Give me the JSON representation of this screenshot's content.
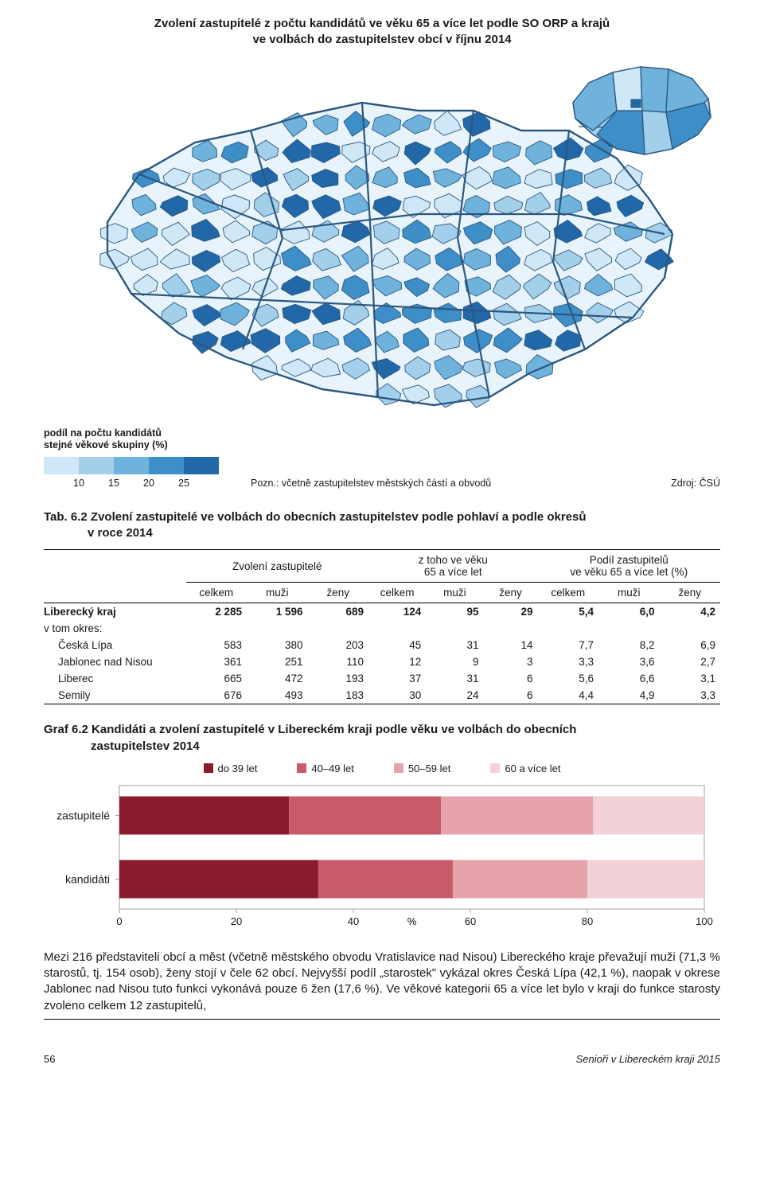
{
  "colors": {
    "map_palette": [
      "#cfe7f6",
      "#a3cfea",
      "#6fb3dd",
      "#3e8fc8",
      "#2267a7"
    ],
    "map_outline": "#2b577f",
    "map_light": "#e8f3fb",
    "chart_series": [
      "#8a1a2e",
      "#c85a6a",
      "#e6a3ac",
      "#f2d2d7"
    ],
    "chart_axis": "#9aa1a8",
    "text": "#1a1a1a"
  },
  "map": {
    "title_l1": "Zvolení zastupitelé z počtu kandidátů ve věku 65 a více let podle SO ORP a krajů",
    "title_l2": "ve volbách do zastupitelstev obcí v říjnu 2014",
    "legend_title_l1": "podíl na počtu kandidátů",
    "legend_title_l2": "stejné věkové skupiny (%)",
    "legend_labels": [
      "10",
      "15",
      "20",
      "25"
    ],
    "note": "Pozn.: včetně zastupitelstev městských částí a obvodů",
    "source": "Zdroj: ČSÚ"
  },
  "table": {
    "caption_prefix": "Tab. 6.2 ",
    "caption_l1": "Zvolení zastupitelé ve volbách do obecních zastupitelstev podle pohlaví a podle okresů",
    "caption_l2": "v roce 2014",
    "head_group_elected": "Zvolení zastupitelé",
    "head_group_age": "z toho ve věku\n65 a více let",
    "head_group_share": "Podíl zastupitelů\nve věku 65 a více let (%)",
    "sub_total": "celkem",
    "sub_men": "muži",
    "sub_women": "ženy",
    "total_row_label": "Liberecký kraj",
    "subhead": "v tom okres:",
    "rows": [
      {
        "label": "Česká Lípa",
        "v": [
          "583",
          "380",
          "203",
          "45",
          "31",
          "14",
          "7,7",
          "8,2",
          "6,9"
        ]
      },
      {
        "label": "Jablonec nad Nisou",
        "v": [
          "361",
          "251",
          "110",
          "12",
          "9",
          "3",
          "3,3",
          "3,6",
          "2,7"
        ]
      },
      {
        "label": "Liberec",
        "v": [
          "665",
          "472",
          "193",
          "37",
          "31",
          "6",
          "5,6",
          "6,6",
          "3,1"
        ]
      },
      {
        "label": "Semily",
        "v": [
          "676",
          "493",
          "183",
          "30",
          "24",
          "6",
          "4,4",
          "4,9",
          "3,3"
        ]
      }
    ],
    "total_values": [
      "2 285",
      "1 596",
      "689",
      "124",
      "95",
      "29",
      "5,4",
      "6,0",
      "4,2"
    ]
  },
  "chart": {
    "caption_prefix": "Graf 6.2 ",
    "caption_l1": "Kandidáti a zvolení zastupitelé v Libereckém kraji podle věku ve volbách do obecních",
    "caption_l2": "zastupitelstev 2014",
    "legend_labels": [
      "do 39 let",
      "40–49 let",
      "50–59 let",
      "60 a více let"
    ],
    "y_labels": [
      "zastupitelé",
      "kandidáti"
    ],
    "x_label": "%",
    "x_ticks": [
      0,
      20,
      40,
      60,
      80,
      100
    ],
    "series_pct": {
      "zastupitele": [
        29,
        26,
        26,
        19
      ],
      "kandidati": [
        34,
        23,
        23,
        20
      ]
    }
  },
  "paragraph": "Mezi 216 představiteli obcí a měst (včetně městského obvodu Vratislavice nad Nisou) Libereckého kraje převažují muži (71,3 % starostů, tj. 154 osob), ženy stojí v čele 62 obcí. Nejvyšší podíl „starostek\" vykázal okres Česká Lípa (42,1 %), naopak v okrese Jablonec nad Nisou tuto funkci vykonává pouze 6 žen (17,6 %). Ve věkové kategorii 65 a více let bylo v kraji do funkce starosty zvoleno celkem 12 zastupitelů,",
  "footer": {
    "page": "56",
    "right": "Senioři v Libereckém kraji 2015"
  }
}
